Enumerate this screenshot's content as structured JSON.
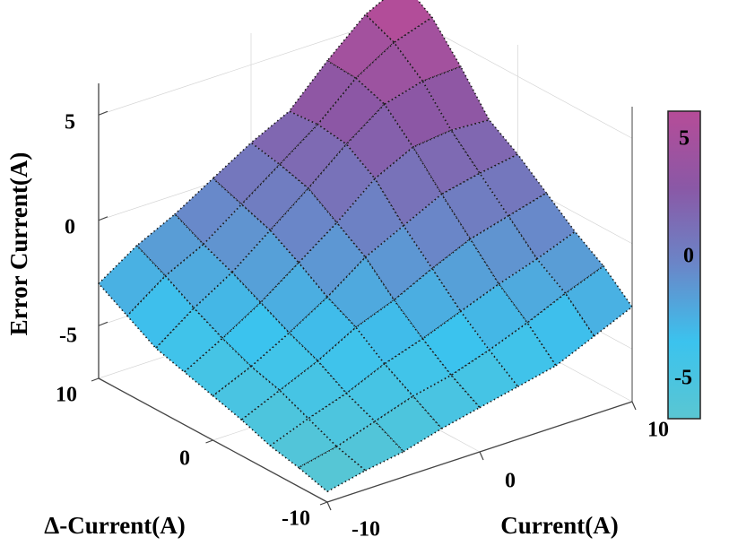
{
  "chart_data": {
    "type": "surface",
    "xlabel": "Current(A)",
    "ylabel": "Δ-Current(A)",
    "zlabel": "Error Current(A)",
    "xlim": [
      -10,
      10
    ],
    "ylim": [
      -10,
      10
    ],
    "zlim": [
      -7,
      6
    ],
    "x_ticks": [
      "-10",
      "0",
      "10"
    ],
    "y_ticks": [
      "-10",
      "0",
      "10"
    ],
    "z_ticks": [
      "-5",
      "0",
      "5"
    ],
    "grid": true,
    "colorbar": {
      "placement": "right",
      "range": [
        -7,
        6
      ],
      "ticks": [
        "-5",
        "0",
        "5"
      ],
      "colormap": [
        "#5ac6d2",
        "#3bc3ee",
        "#6a86c8",
        "#8a58a6",
        "#b64c98"
      ]
    },
    "grid_x": [
      -10,
      -7.5,
      -5,
      -2.5,
      0,
      2.5,
      5,
      7.5,
      10
    ],
    "grid_y": [
      -10,
      -7.5,
      -5,
      -2.5,
      0,
      2.5,
      5,
      7.5,
      10
    ],
    "z": [
      [
        -7.0,
        -6.6,
        -6.3,
        -5.8,
        -5.4,
        -5.0,
        -4.6,
        -3.8,
        -3.0
      ],
      [
        -6.6,
        -6.2,
        -5.6,
        -5.0,
        -4.6,
        -4.0,
        -3.3,
        -2.5,
        -1.8
      ],
      [
        -6.3,
        -5.6,
        -5.0,
        -4.2,
        -3.6,
        -2.9,
        -2.2,
        -1.6,
        -0.9
      ],
      [
        -5.8,
        -5.0,
        -4.2,
        -3.2,
        -2.5,
        -1.6,
        -0.8,
        -0.3,
        0.2
      ],
      [
        -5.4,
        -4.6,
        -3.6,
        -2.5,
        -1.2,
        -0.3,
        0.6,
        1.0,
        1.3
      ],
      [
        -5.0,
        -4.0,
        -2.9,
        -1.6,
        -0.3,
        1.2,
        2.1,
        2.3,
        2.2
      ],
      [
        -4.6,
        -3.3,
        -2.2,
        -0.8,
        0.6,
        2.1,
        3.4,
        3.9,
        4.0
      ],
      [
        -3.8,
        -2.5,
        -1.6,
        -0.3,
        1.0,
        2.3,
        3.9,
        5.0,
        5.6
      ],
      [
        -3.0,
        -1.8,
        -0.9,
        0.2,
        1.3,
        2.2,
        4.0,
        5.6,
        6.5
      ]
    ]
  }
}
